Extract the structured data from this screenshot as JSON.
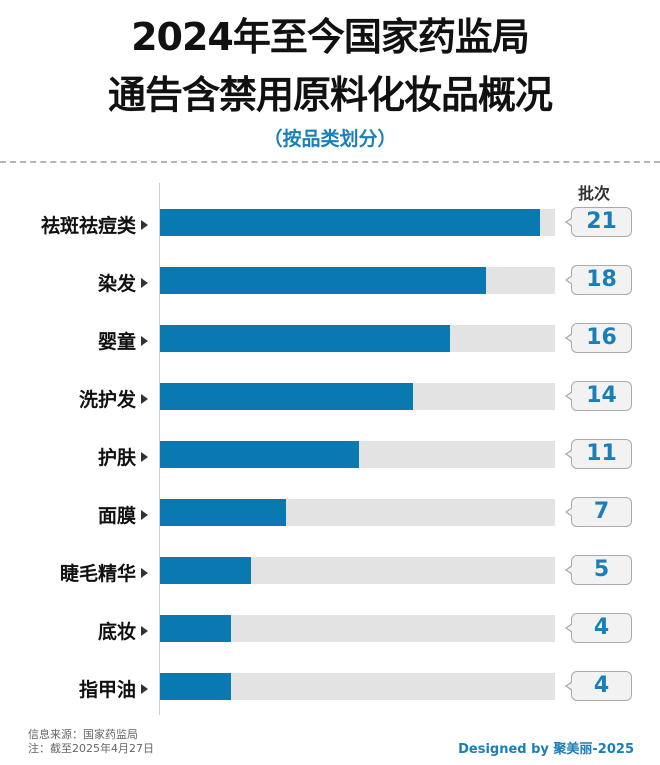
{
  "header": {
    "title_line1": "2024年至今国家药监局",
    "title_line2": "通告含禁用原料化妆品概况",
    "subtitle": "（按品类划分）"
  },
  "unit_label": "批次",
  "colors": {
    "bar": "#0b79b1",
    "track": "#e3e3e3",
    "accent": "#1a7fb8"
  },
  "chart_data": {
    "type": "bar",
    "orientation": "horizontal",
    "title": "2024年至今国家药监局通告含禁用原料化妆品概况",
    "subtitle": "（按品类划分）",
    "xlabel": "",
    "ylabel": "",
    "value_label": "批次",
    "categories": [
      "祛斑祛痘类",
      "染发",
      "婴童",
      "洗护发",
      "护肤",
      "面膜",
      "睫毛精华",
      "底妆",
      "指甲油"
    ],
    "values": [
      21,
      18,
      16,
      14,
      11,
      7,
      5,
      4,
      4
    ],
    "xlim": [
      0,
      21.8
    ],
    "grid": false,
    "legend": "none"
  },
  "rows": [
    {
      "label": "祛斑祛痘类",
      "value": "21",
      "pct": 96.3
    },
    {
      "label": "染发",
      "value": "18",
      "pct": 82.5
    },
    {
      "label": "婴童",
      "value": "16",
      "pct": 73.4
    },
    {
      "label": "洗护发",
      "value": "14",
      "pct": 64.0
    },
    {
      "label": "护肤",
      "value": "11",
      "pct": 50.5
    },
    {
      "label": "面膜",
      "value": "7",
      "pct": 32.0
    },
    {
      "label": "睫毛精华",
      "value": "5",
      "pct": 23.0
    },
    {
      "label": "底妆",
      "value": "4",
      "pct": 18.0
    },
    {
      "label": "指甲油",
      "value": "4",
      "pct": 18.0
    }
  ],
  "footer": {
    "source": "信息来源：国家药监局",
    "note": "注：截至2025年4月27日",
    "credit": "Designed by 聚美丽-2025"
  }
}
